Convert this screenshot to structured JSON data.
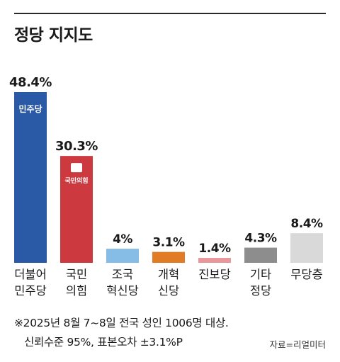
{
  "title": "정당 지지도",
  "chart_data": {
    "type": "bar",
    "title": "정당 지지도",
    "categories": [
      [
        "더불어",
        "민주당"
      ],
      [
        "국민",
        "의힘"
      ],
      [
        "조국",
        "혁신당"
      ],
      [
        "개혁",
        "신당"
      ],
      [
        "진보당"
      ],
      [
        "기타",
        "정당"
      ],
      [
        "무당층"
      ]
    ],
    "values": [
      48.4,
      30.3,
      4,
      3.1,
      1.4,
      4.3,
      8.4
    ],
    "labels": [
      "48.4%",
      "30.3%",
      "4%",
      "3.1%",
      "1.4%",
      "4.3%",
      "8.4%"
    ],
    "colors": [
      "#2a5aa6",
      "#cc3a3f",
      "#86bde6",
      "#e27c24",
      "#e8979a",
      "#8d8d8d",
      "#d9d9d9"
    ],
    "logos": [
      "민주당",
      "국민의힘"
    ],
    "ylim": [
      0,
      48.4
    ],
    "grid": false,
    "legend": "none"
  },
  "footnote": {
    "line1": "※2025년 8월 7~8일 전국 성인 1006명 대상.",
    "line2": "신뢰수준 95%, 표본오차 ±3.1%P"
  },
  "source": "자료=리얼미터"
}
